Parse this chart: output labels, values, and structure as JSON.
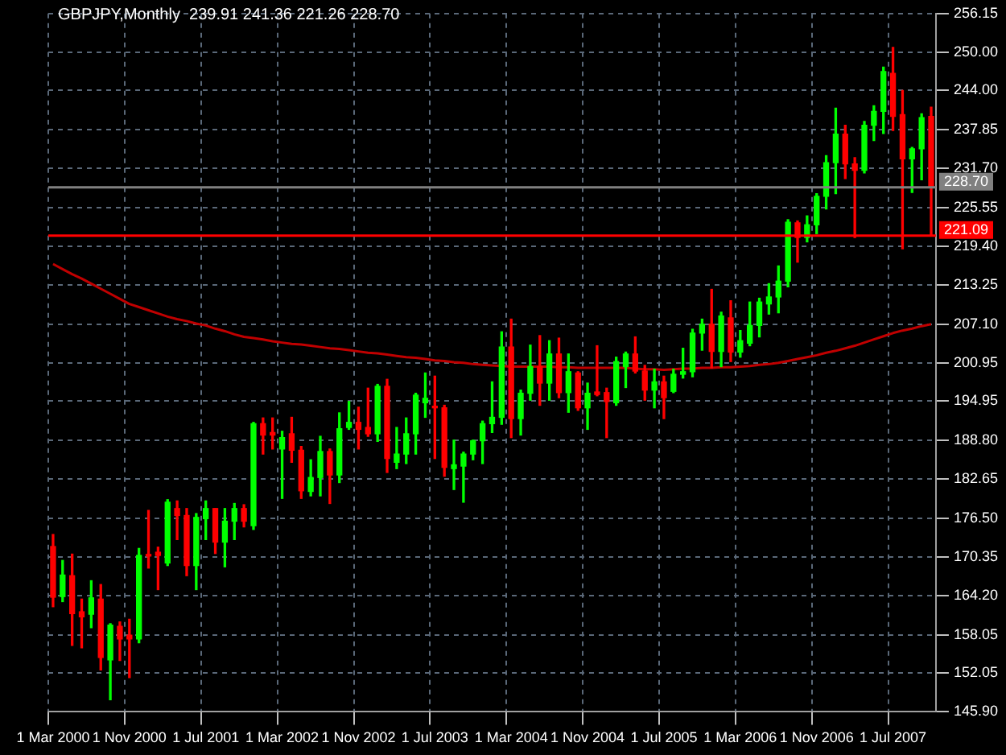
{
  "chart_data": {
    "type": "candlestick",
    "title": "GBPJPY,Monthly  239.91 241.36 221.26 228.70",
    "categories": [
      "1 Mar 2000",
      null,
      null,
      null,
      null,
      null,
      null,
      null,
      "1 Nov 2000",
      null,
      null,
      null,
      null,
      null,
      null,
      null,
      "1 Jul 2001",
      null,
      null,
      null,
      null,
      null,
      null,
      null,
      "1 Mar 2002",
      null,
      null,
      null,
      null,
      null,
      null,
      null,
      "1 Nov 2002",
      null,
      null,
      null,
      null,
      null,
      null,
      null,
      "1 Jul 2003",
      null,
      null,
      null,
      null,
      null,
      null,
      null,
      "1 Mar 2004",
      null,
      null,
      null,
      null,
      null,
      null,
      null,
      "1 Nov 2004",
      null,
      null,
      null,
      null,
      null,
      null,
      null,
      "1 Jul 2005",
      null,
      null,
      null,
      null,
      null,
      null,
      null,
      "1 Mar 2006",
      null,
      null,
      null,
      null,
      null,
      null,
      null,
      "1 Nov 2006",
      null,
      null,
      null,
      null,
      null,
      null,
      null,
      "1 Jul 2007",
      null,
      null,
      null,
      null
    ],
    "ohlc": [
      [
        172.0,
        173.9,
        162.5,
        164.0
      ],
      [
        164.1,
        169.8,
        163.3,
        167.5
      ],
      [
        167.4,
        170.8,
        156.4,
        161.4
      ],
      [
        161.7,
        163.7,
        156.0,
        160.9
      ],
      [
        161.3,
        166.6,
        159.2,
        163.9
      ],
      [
        163.7,
        166.0,
        152.5,
        154.5
      ],
      [
        154.1,
        159.8,
        147.8,
        159.6
      ],
      [
        159.4,
        160.1,
        154.0,
        157.4
      ],
      [
        158.0,
        160.5,
        151.3,
        157.4
      ],
      [
        157.4,
        171.7,
        156.8,
        170.6
      ],
      [
        170.6,
        177.7,
        168.6,
        170.5
      ],
      [
        171.1,
        171.9,
        165.2,
        170.6
      ],
      [
        169.4,
        179.4,
        169.0,
        179.0
      ],
      [
        178.0,
        179.2,
        173.1,
        176.9
      ],
      [
        176.9,
        178.0,
        167.4,
        169.0
      ],
      [
        169.0,
        177.2,
        165.2,
        176.6
      ],
      [
        176.4,
        179.2,
        173.1,
        178.0
      ],
      [
        178.0,
        178.0,
        170.9,
        172.7
      ],
      [
        172.7,
        178.0,
        168.8,
        176.0
      ],
      [
        176.0,
        178.8,
        173.1,
        178.0
      ],
      [
        178.0,
        178.6,
        175.1,
        176.0
      ],
      [
        175.3,
        191.6,
        174.7,
        191.4
      ],
      [
        191.4,
        192.3,
        186.6,
        189.6
      ],
      [
        190.0,
        192.3,
        187.4,
        189.6
      ],
      [
        187.4,
        190.2,
        179.6,
        189.2
      ],
      [
        189.8,
        192.4,
        185.3,
        187.2
      ],
      [
        187.2,
        187.8,
        179.6,
        180.8
      ],
      [
        180.7,
        185.7,
        180.0,
        182.9
      ],
      [
        182.9,
        189.4,
        180.0,
        187.0
      ],
      [
        187.0,
        187.4,
        178.8,
        183.3
      ],
      [
        183.3,
        193.1,
        182.1,
        190.6
      ],
      [
        190.8,
        194.9,
        190.5,
        191.6
      ],
      [
        191.6,
        194.0,
        187.4,
        190.5
      ],
      [
        190.8,
        197.0,
        189.4,
        189.8
      ],
      [
        189.8,
        197.6,
        188.6,
        197.3
      ],
      [
        197.3,
        198.4,
        183.7,
        185.9
      ],
      [
        185.3,
        190.8,
        184.3,
        186.6
      ],
      [
        186.6,
        192.3,
        185.1,
        189.8
      ],
      [
        189.8,
        196.2,
        186.6,
        195.9
      ],
      [
        194.7,
        199.4,
        192.4,
        195.4
      ],
      [
        194.0,
        198.9,
        185.9,
        193.9
      ],
      [
        193.9,
        194.3,
        183.1,
        184.5
      ],
      [
        184.3,
        188.8,
        181.0,
        184.9
      ],
      [
        184.7,
        186.9,
        179.0,
        186.6
      ],
      [
        186.6,
        188.8,
        185.7,
        188.7
      ],
      [
        188.7,
        191.8,
        185.1,
        191.4
      ],
      [
        191.4,
        198.0,
        190.0,
        192.4
      ],
      [
        192.4,
        205.9,
        191.3,
        203.5
      ],
      [
        203.5,
        207.9,
        189.2,
        192.2
      ],
      [
        192.2,
        196.7,
        189.6,
        196.2
      ],
      [
        196.2,
        203.8,
        195.1,
        200.4
      ],
      [
        200.4,
        205.3,
        194.3,
        197.8
      ],
      [
        197.8,
        204.5,
        195.1,
        202.4
      ],
      [
        202.4,
        204.9,
        195.5,
        196.3
      ],
      [
        196.3,
        202.4,
        193.2,
        199.6
      ],
      [
        199.4,
        199.6,
        193.5,
        193.9
      ],
      [
        193.9,
        197.8,
        190.5,
        196.2
      ],
      [
        196.4,
        203.7,
        195.8,
        196.0
      ],
      [
        196.3,
        197.0,
        189.2,
        194.9
      ],
      [
        194.7,
        201.9,
        194.3,
        201.2
      ],
      [
        200.4,
        202.7,
        197.1,
        202.4
      ],
      [
        202.4,
        205.1,
        199.4,
        199.7
      ],
      [
        199.7,
        200.6,
        195.1,
        196.7
      ],
      [
        196.7,
        200.0,
        193.9,
        198.0
      ],
      [
        198.0,
        198.9,
        192.2,
        195.5
      ],
      [
        196.5,
        200.0,
        196.3,
        199.2
      ],
      [
        199.2,
        203.3,
        198.6,
        199.6
      ],
      [
        199.6,
        206.3,
        198.8,
        205.7
      ],
      [
        205.7,
        207.9,
        203.0,
        207.1
      ],
      [
        207.1,
        212.6,
        200.2,
        202.8
      ],
      [
        202.8,
        209.0,
        200.4,
        208.4
      ],
      [
        208.1,
        210.8,
        201.2,
        202.7
      ],
      [
        202.7,
        206.1,
        201.9,
        204.5
      ],
      [
        204.1,
        210.6,
        203.7,
        206.9
      ],
      [
        206.9,
        211.2,
        205.1,
        210.6
      ],
      [
        210.3,
        213.5,
        208.7,
        211.4
      ],
      [
        211.4,
        216.3,
        208.9,
        213.9
      ],
      [
        213.9,
        223.6,
        213.0,
        223.2
      ],
      [
        223.1,
        223.4,
        216.9,
        220.8
      ],
      [
        220.8,
        224.2,
        220.1,
        222.8
      ],
      [
        222.8,
        227.7,
        221.4,
        227.3
      ],
      [
        227.3,
        233.7,
        225.3,
        232.6
      ],
      [
        232.6,
        241.2,
        227.7,
        237.1
      ],
      [
        237.1,
        238.5,
        230.1,
        232.4
      ],
      [
        232.4,
        233.4,
        220.8,
        231.4
      ],
      [
        231.4,
        239.1,
        231.0,
        238.5
      ],
      [
        238.5,
        241.6,
        236.1,
        240.7
      ],
      [
        240.7,
        247.7,
        237.2,
        247.0
      ],
      [
        246.7,
        250.8,
        237.7,
        239.9
      ],
      [
        240.2,
        244.0,
        219.0,
        233.2
      ],
      [
        233.2,
        235.0,
        227.9,
        234.8
      ],
      [
        234.8,
        240.3,
        229.9,
        239.7
      ],
      [
        239.91,
        241.36,
        221.26,
        228.7
      ]
    ],
    "colors": [
      "#ff0000",
      "#00ff00",
      "#ff0000",
      "#ff0000",
      "#00ff00",
      "#ff0000",
      "#00ff00",
      "#ff0000",
      "#ff0000",
      "#00ff00",
      "#ff0000",
      "#ff0000",
      "#00ff00",
      "#ff0000",
      "#ff0000",
      "#00ff00",
      "#00ff00",
      "#ff0000",
      "#00ff00",
      "#00ff00",
      "#ff0000",
      "#00ff00",
      "#ff0000",
      "#ff0000",
      "#00ff00",
      "#ff0000",
      "#ff0000",
      "#00ff00",
      "#00ff00",
      "#ff0000",
      "#00ff00",
      "#00ff00",
      "#ff0000",
      "#ff0000",
      "#00ff00",
      "#ff0000",
      "#00ff00",
      "#00ff00",
      "#00ff00",
      "#00ff00",
      "#ff0000",
      "#ff0000",
      "#00ff00",
      "#00ff00",
      "#00ff00",
      "#00ff00",
      "#00ff00",
      "#00ff00",
      "#ff0000",
      "#00ff00",
      "#00ff00",
      "#ff0000",
      "#00ff00",
      "#ff0000",
      "#00ff00",
      "#ff0000",
      "#00ff00",
      "#ff0000",
      "#ff0000",
      "#00ff00",
      "#00ff00",
      "#ff0000",
      "#ff0000",
      "#00ff00",
      "#ff0000",
      "#00ff00",
      "#00ff00",
      "#00ff00",
      "#00ff00",
      "#ff0000",
      "#00ff00",
      "#ff0000",
      "#00ff00",
      "#00ff00",
      "#00ff00",
      "#00ff00",
      "#00ff00",
      "#00ff00",
      "#ff0000",
      "#00ff00",
      "#00ff00",
      "#00ff00",
      "#00ff00",
      "#ff0000",
      "#ff0000",
      "#00ff00",
      "#00ff00",
      "#00ff00",
      "#ff0000",
      "#ff0000",
      "#00ff00",
      "#00ff00",
      "#ff0000"
    ],
    "series": [
      {
        "type": "line",
        "color": "#c00000",
        "values": [
          216.6,
          215.8,
          215.0,
          214.3,
          213.5,
          212.7,
          211.9,
          211.1,
          210.3,
          209.8,
          209.3,
          208.8,
          208.3,
          207.9,
          207.6,
          207.2,
          206.9,
          206.4,
          206.0,
          205.5,
          205.1,
          204.9,
          204.7,
          204.4,
          204.2,
          204.0,
          203.9,
          203.7,
          203.5,
          203.3,
          203.2,
          203.0,
          202.8,
          202.6,
          202.5,
          202.3,
          202.1,
          201.9,
          201.8,
          201.6,
          201.4,
          201.3,
          201.1,
          201.0,
          200.8,
          200.7,
          200.6,
          200.5,
          200.4,
          200.4,
          200.4,
          200.4,
          200.4,
          200.3,
          200.3,
          200.2,
          200.2,
          200.2,
          200.2,
          200.2,
          200.2,
          200.1,
          200.0,
          200.0,
          199.9,
          200.0,
          200.1,
          200.1,
          200.2,
          200.2,
          200.3,
          200.3,
          200.4,
          200.5,
          200.7,
          200.8,
          201.0,
          201.3,
          201.6,
          201.9,
          202.2,
          202.6,
          202.9,
          203.3,
          203.7,
          204.2,
          204.7,
          205.2,
          205.7,
          206.1,
          206.4,
          206.8,
          207.1
        ]
      }
    ],
    "ylim": [
      145.9,
      256.15
    ],
    "yticks": [
      {
        "value": 145.9,
        "label": "145.90"
      },
      {
        "value": 152.05,
        "label": "152.05"
      },
      {
        "value": 158.05,
        "label": "158.05"
      },
      {
        "value": 164.2,
        "label": "164.20"
      },
      {
        "value": 170.35,
        "label": "170.35"
      },
      {
        "value": 176.5,
        "label": "176.50"
      },
      {
        "value": 182.65,
        "label": "182.65"
      },
      {
        "value": 188.8,
        "label": "188.80"
      },
      {
        "value": 194.95,
        "label": "194.95"
      },
      {
        "value": 200.95,
        "label": "200.95"
      },
      {
        "value": 207.1,
        "label": "207.10"
      },
      {
        "value": 213.25,
        "label": "213.25"
      },
      {
        "value": 219.4,
        "label": "219.40"
      },
      {
        "value": 225.55,
        "label": "225.55"
      },
      {
        "value": 231.7,
        "label": "231.70"
      },
      {
        "value": 237.85,
        "label": "237.85"
      },
      {
        "value": 244,
        "label": "244.00"
      },
      {
        "value": 250,
        "label": "250.00"
      },
      {
        "value": 256.15,
        "label": "256.15"
      }
    ],
    "grid": true,
    "ref_lines": [
      {
        "axis": "y",
        "value": 228.7,
        "label": "228.70",
        "color": "#808080"
      },
      {
        "axis": "y",
        "value": 221.09,
        "label": "221.09",
        "color": "#ff0000"
      }
    ]
  }
}
